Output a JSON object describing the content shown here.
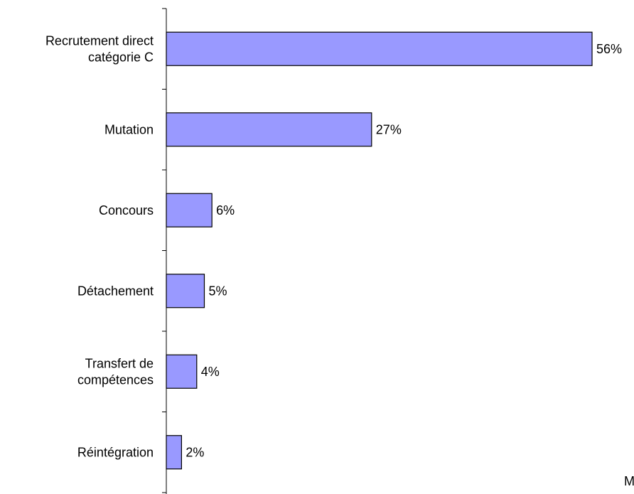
{
  "chart_data": {
    "type": "bar",
    "orientation": "horizontal",
    "categories": [
      [
        "Recrutement direct",
        "catégorie C"
      ],
      [
        "Mutation"
      ],
      [
        "Concours"
      ],
      [
        "Détachement"
      ],
      [
        "Transfert de",
        "compétences"
      ],
      [
        "Réintégration"
      ]
    ],
    "values": [
      56,
      27,
      6,
      5,
      4,
      2
    ],
    "value_labels": [
      "56%",
      "27%",
      "6%",
      "5%",
      "4%",
      "2%"
    ],
    "unit": "%",
    "xlim": [
      0,
      56
    ],
    "grid": false,
    "legend": "none",
    "bar_color": "#9999ff",
    "bar_border_color": "#000000"
  },
  "corner_note": "M"
}
